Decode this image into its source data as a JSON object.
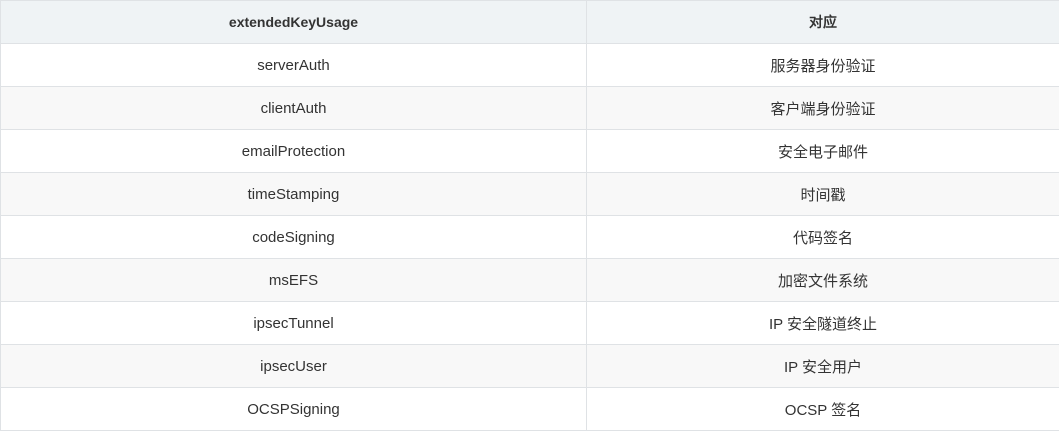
{
  "table": {
    "headers": [
      "extendedKeyUsage",
      "对应"
    ],
    "rows": [
      [
        "serverAuth",
        "服务器身份验证"
      ],
      [
        "clientAuth",
        "客户端身份验证"
      ],
      [
        "emailProtection",
        "安全电子邮件"
      ],
      [
        "timeStamping",
        "时间戳"
      ],
      [
        "codeSigning",
        "代码签名"
      ],
      [
        "msEFS",
        "加密文件系统"
      ],
      [
        "ipsecTunnel",
        "IP 安全隧道终止"
      ],
      [
        "ipsecUser",
        "IP 安全用户"
      ],
      [
        "OCSPSigning",
        "OCSP 签名"
      ]
    ]
  }
}
